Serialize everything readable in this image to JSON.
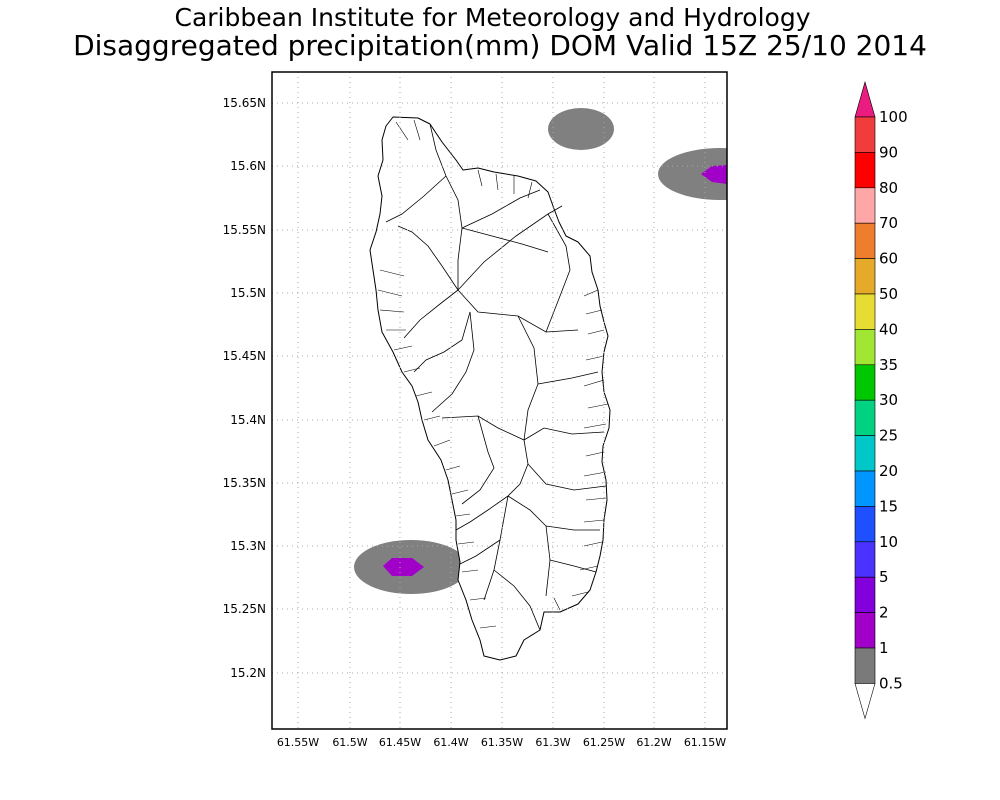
{
  "header": {
    "title": "Caribbean Institute for Meteorology and Hydrology",
    "subtitle": "Disaggregated precipitation(mm) DOM Valid 15Z 25/10 2014"
  },
  "map": {
    "lat_labels": [
      "15.65N",
      "15.6N",
      "15.55N",
      "15.5N",
      "15.45N",
      "15.4N",
      "15.35N",
      "15.3N",
      "15.25N",
      "15.2N"
    ],
    "lon_labels": [
      "61.55W",
      "61.5W",
      "61.45W",
      "61.4W",
      "61.35W",
      "61.3W",
      "61.25W",
      "61.2W",
      "61.15W"
    ]
  },
  "legend": {
    "labels": [
      "100",
      "90",
      "80",
      "70",
      "60",
      "50",
      "40",
      "35",
      "30",
      "25",
      "20",
      "15",
      "10",
      "5",
      "2",
      "1",
      "0.5"
    ],
    "colors": [
      "#ea1c80",
      "#f03c3c",
      "#ff0000",
      "#ffa6a6",
      "#ee7d2e",
      "#e6aa2a",
      "#e6dc32",
      "#a0e632",
      "#00c800",
      "#00d282",
      "#00c8c8",
      "#0096ff",
      "#1e50ff",
      "#4b32ff",
      "#8200dc",
      "#a000c8",
      "#7a7a7a"
    ]
  },
  "colors": {
    "background": "#ffffff",
    "precip_light": "#808080",
    "precip_2mm": "#a000c8",
    "land": "#ffffff",
    "outline": "#000000"
  }
}
